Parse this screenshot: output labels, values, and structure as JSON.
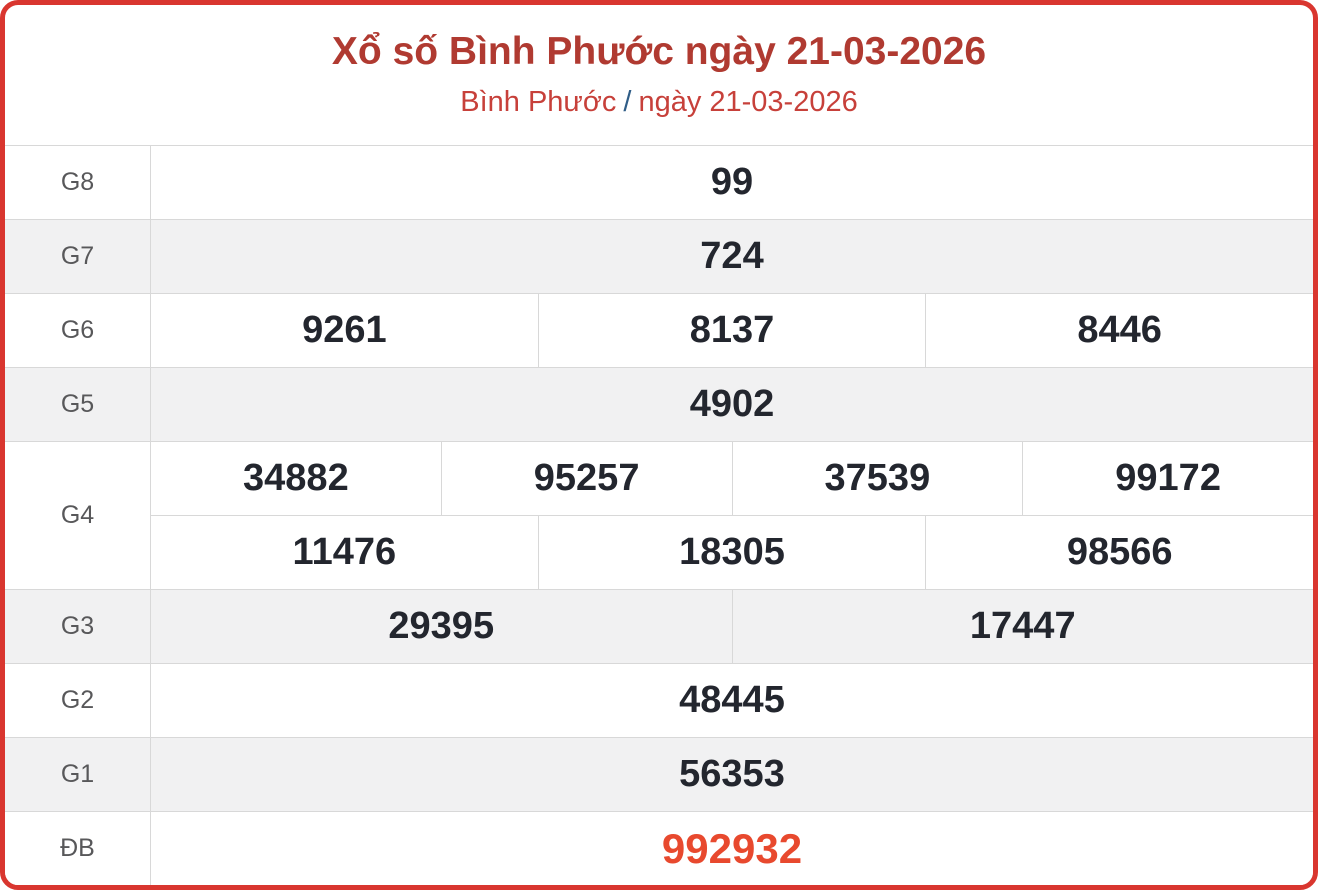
{
  "header": {
    "title": "Xổ số Bình Phước ngày 21-03-2026",
    "breadcrumb": {
      "region": "Bình Phước",
      "separator": "/",
      "date": "ngày 21-03-2026"
    }
  },
  "results": {
    "g8": {
      "label": "G8",
      "values": [
        "99"
      ]
    },
    "g7": {
      "label": "G7",
      "values": [
        "724"
      ]
    },
    "g6": {
      "label": "G6",
      "values": [
        "9261",
        "8137",
        "8446"
      ]
    },
    "g5": {
      "label": "G5",
      "values": [
        "4902"
      ]
    },
    "g4": {
      "label": "G4",
      "row1": [
        "34882",
        "95257",
        "37539",
        "99172"
      ],
      "row2": [
        "11476",
        "18305",
        "98566"
      ]
    },
    "g3": {
      "label": "G3",
      "values": [
        "29395",
        "17447"
      ]
    },
    "g2": {
      "label": "G2",
      "values": [
        "48445"
      ]
    },
    "g1": {
      "label": "G1",
      "values": [
        "56353"
      ]
    },
    "db": {
      "label": "ĐB",
      "values": [
        "992932"
      ]
    }
  },
  "colors": {
    "panel_border_red": "#d9362f",
    "title_red": "#b03a31",
    "breadcrumb_link_red": "#c7403a",
    "breadcrumb_separator_blue": "#2f5d87",
    "special_prize_orange": "#e8492e",
    "row_shade_gray": "#f1f1f2",
    "divider_gray": "#d8d8d8",
    "label_gray": "#58585a",
    "value_dark": "#23262e"
  }
}
